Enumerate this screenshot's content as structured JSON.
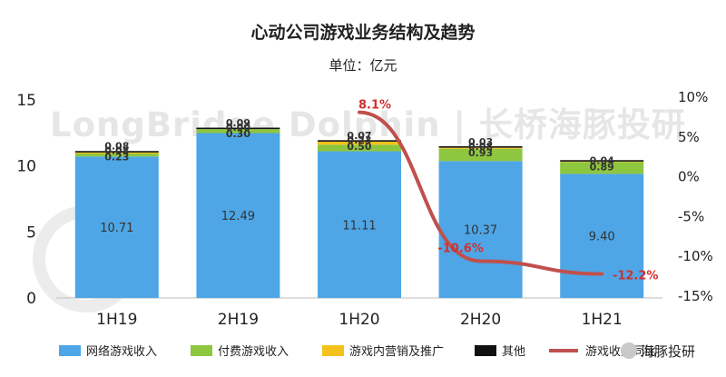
{
  "chart_data": {
    "type": "bar",
    "title": "心动公司游戏业务结构及趋势",
    "subtitle": "单位：亿元",
    "categories": [
      "1H19",
      "2H19",
      "1H20",
      "2H20",
      "1H21"
    ],
    "stacked": true,
    "ylim": [
      0,
      15
    ],
    "yticks": [
      "0",
      "5",
      "10",
      "15"
    ],
    "y2lim": [
      -15,
      10
    ],
    "y2ticks": [
      "10%",
      "5%",
      "0%",
      "-5%",
      "-10%",
      "-15%"
    ],
    "series": [
      {
        "name": "网络游戏收入",
        "type": "bar",
        "color": "#4ea6e6",
        "values": [
          10.71,
          12.49,
          11.11,
          10.37,
          9.4
        ],
        "labels": [
          "10.71",
          "12.49",
          "11.11",
          "10.37",
          "9.40"
        ]
      },
      {
        "name": "付费游戏收入",
        "type": "bar",
        "color": "#8dc63f",
        "values": [
          0.23,
          0.3,
          0.5,
          0.93,
          0.89
        ],
        "labels": [
          "0.23",
          "0.30",
          "0.50",
          "0.93",
          "0.89"
        ]
      },
      {
        "name": "游戏内营销及推广",
        "type": "bar",
        "color": "#f5c21b",
        "values": [
          0.08,
          0.0,
          0.23,
          0.08,
          0.04
        ],
        "labels": [
          "0.08",
          "0.00",
          "0.23",
          "0.08",
          "0.04"
        ]
      },
      {
        "name": "其他",
        "type": "bar",
        "color": "#111111",
        "values": [
          0.08,
          0.09,
          0.07,
          0.03,
          0.04
        ],
        "labels": [
          "0.08",
          "0.09",
          "0.07",
          "0.03",
          ""
        ]
      },
      {
        "name": "游戏收入同比",
        "type": "line",
        "axis": "right",
        "color": "#c0504d",
        "values": [
          null,
          null,
          8.1,
          -10.6,
          -12.2
        ],
        "labels": [
          "",
          "",
          "8.1%",
          "-10.6%",
          "-12.2%"
        ]
      }
    ],
    "legend_position": "bottom"
  },
  "watermark": {
    "text": "LongBridge Dolphin | 长桥海豚投研"
  },
  "brand": {
    "text": "海豚投研"
  }
}
